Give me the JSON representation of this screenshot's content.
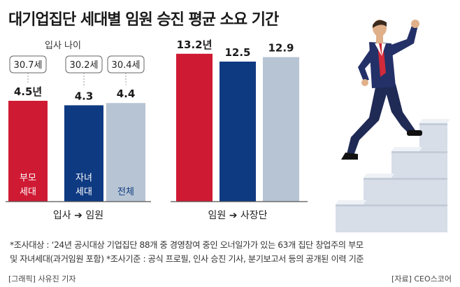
{
  "title": "대기업집단 세대별 임원 승진 평균 소요 기간",
  "colors": {
    "parent": "#cf1a33",
    "child": "#0e3a82",
    "all": "#b7c4d3",
    "axis": "#555555"
  },
  "chart_data": [
    {
      "type": "bar",
      "categories": [
        "부모 세대",
        "자녀 세대",
        "전체"
      ],
      "values": [
        4.5,
        4.3,
        4.4
      ],
      "value_labels": [
        "4.5년",
        "4.3",
        "4.4"
      ],
      "entry_age_title": "입사 나이",
      "entry_ages": [
        "30.7세",
        "30.2세",
        "30.4세"
      ],
      "xlabel_from": "입사",
      "xlabel_to": "임원",
      "arrow": "➔"
    },
    {
      "type": "bar",
      "categories": [
        "부모 세대",
        "자녀 세대",
        "전체"
      ],
      "values": [
        13.2,
        12.5,
        12.9
      ],
      "value_labels": [
        "13.2년",
        "12.5",
        "12.9"
      ],
      "xlabel_from": "임원",
      "xlabel_to": "사장단",
      "arrow": "➔"
    }
  ],
  "inbar_labels": [
    [
      "부모",
      "세대"
    ],
    [
      "자녀",
      "세대"
    ],
    [
      "전체"
    ]
  ],
  "notes": {
    "line1": "*조사대상 : ‘24년 공시대상 기업집단 88개 중 경영참여 중인 오너일가가 있는 63개 집단 창업주의 부모",
    "line2": "및 자녀세대(과거임원 포함) *조사기준 : 공식 프로필, 인사 승진 기사, 분기보고서 등의 공개된 이력 기준"
  },
  "credits": {
    "left": "[그래픽] 사유진 기자",
    "right": "[자료] CEO스코어"
  }
}
